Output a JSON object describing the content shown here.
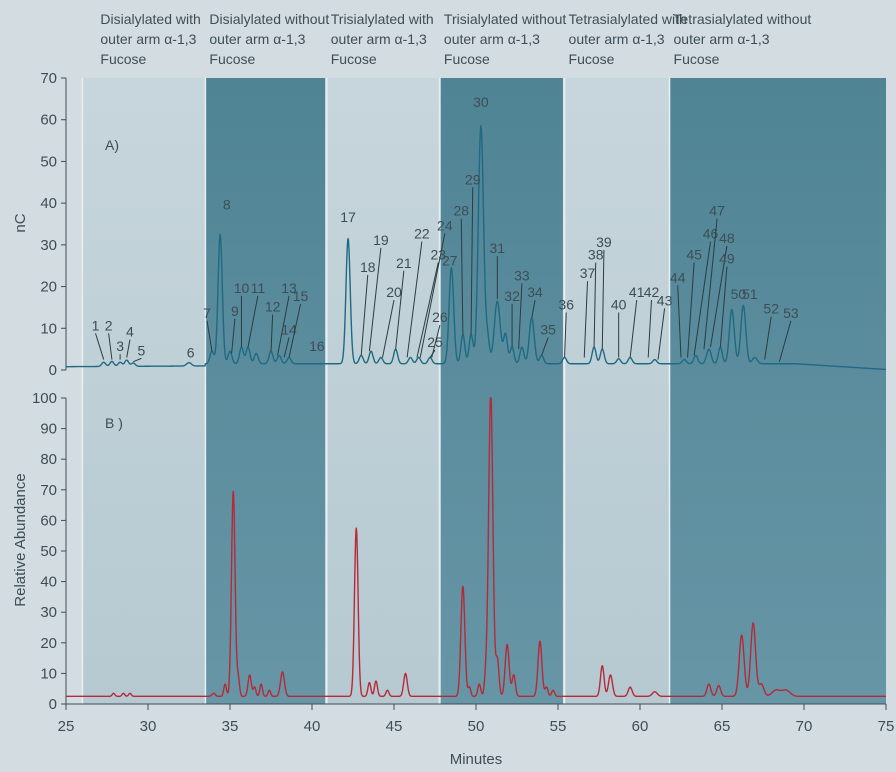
{
  "chart_data": {
    "type": "line",
    "xlabel": "Minutes",
    "xlim": [
      25,
      75
    ],
    "xticks": [
      25,
      30,
      35,
      40,
      45,
      50,
      55,
      60,
      65,
      70,
      75
    ],
    "bands": [
      {
        "x": [
          26,
          33.5
        ],
        "style": "light",
        "lines": [
          "Disialylated with",
          "outer arm α-1,3",
          "Fucose"
        ]
      },
      {
        "x": [
          33.5,
          40.8
        ],
        "style": "dark",
        "lines": [
          "Disialylated without",
          "outer arm α-1,3",
          "Fucose"
        ]
      },
      {
        "x": [
          40.9,
          47.7
        ],
        "style": "light",
        "lines": [
          "Trisialylated with",
          "outer arm α-1,3",
          "Fucose"
        ]
      },
      {
        "x": [
          47.8,
          55.3
        ],
        "style": "dark",
        "lines": [
          "Trisialylated without",
          "outer arm α-1,3",
          "Fucose"
        ]
      },
      {
        "x": [
          55.4,
          61.8
        ],
        "style": "light",
        "lines": [
          "Tetrasialylated with",
          "outer arm α-1,3",
          "Fucose"
        ]
      },
      {
        "x": [
          61.8,
          75
        ],
        "style": "dark",
        "lines": [
          "Tetrasialylated without",
          "outer arm α-1,3",
          "Fucose"
        ]
      }
    ],
    "panels": [
      {
        "tag": "A)",
        "ylabel": "nC",
        "ylim": [
          0,
          70
        ],
        "yticks": [
          0,
          10,
          20,
          30,
          40,
          50,
          60,
          70
        ],
        "color": "#1f6a82",
        "baseline": 1.5,
        "peaks": [
          [
            27.3,
            1.0,
            0.12
          ],
          [
            27.8,
            1.2,
            0.12
          ],
          [
            28.3,
            1.0,
            0.12
          ],
          [
            28.7,
            1.5,
            0.12
          ],
          [
            29.1,
            0.8,
            0.12
          ],
          [
            32.5,
            0.8,
            0.15
          ],
          [
            33.9,
            3.0,
            0.12
          ],
          [
            34.4,
            31.0,
            0.13
          ],
          [
            35.0,
            3.0,
            0.12
          ],
          [
            35.7,
            4.0,
            0.12
          ],
          [
            36.1,
            4.0,
            0.12
          ],
          [
            36.6,
            2.5,
            0.12
          ],
          [
            37.5,
            3.0,
            0.12
          ],
          [
            38.0,
            2.0,
            0.12
          ],
          [
            38.6,
            1.5,
            0.12
          ],
          [
            42.2,
            30.0,
            0.13
          ],
          [
            43.0,
            2.0,
            0.12
          ],
          [
            43.6,
            3.0,
            0.12
          ],
          [
            44.2,
            1.5,
            0.12
          ],
          [
            45.1,
            3.5,
            0.12
          ],
          [
            46.0,
            1.5,
            0.12
          ],
          [
            46.5,
            1.5,
            0.12
          ],
          [
            47.2,
            1.5,
            0.12
          ],
          [
            48.5,
            23.0,
            0.14
          ],
          [
            49.2,
            7.0,
            0.12
          ],
          [
            49.7,
            7.0,
            0.12
          ],
          [
            50.3,
            57.0,
            0.16
          ],
          [
            50.7,
            6.0,
            0.12
          ],
          [
            51.3,
            15.0,
            0.18
          ],
          [
            51.8,
            7.0,
            0.12
          ],
          [
            52.2,
            4.0,
            0.12
          ],
          [
            52.8,
            4.0,
            0.12
          ],
          [
            53.4,
            11.0,
            0.15
          ],
          [
            54.0,
            2.0,
            0.12
          ],
          [
            55.4,
            1.5,
            0.12
          ],
          [
            57.2,
            4.0,
            0.12
          ],
          [
            57.7,
            3.5,
            0.12
          ],
          [
            58.7,
            1.2,
            0.12
          ],
          [
            59.4,
            1.5,
            0.12
          ],
          [
            60.9,
            1.0,
            0.12
          ],
          [
            62.7,
            1.0,
            0.12
          ],
          [
            63.4,
            2.0,
            0.12
          ],
          [
            64.2,
            3.5,
            0.14
          ],
          [
            64.9,
            4.0,
            0.12
          ],
          [
            65.6,
            13.0,
            0.15
          ],
          [
            66.3,
            14.0,
            0.15
          ],
          [
            67.0,
            1.5,
            0.15
          ]
        ],
        "labels": [
          {
            "t": "1",
            "x": 26.8,
            "y": 9.5,
            "px": 27.3,
            "py": 2.5
          },
          {
            "t": "2",
            "x": 27.6,
            "y": 9.5,
            "px": 27.8,
            "py": 2.5
          },
          {
            "t": "3",
            "x": 28.3,
            "y": 4.5,
            "px": 28.3,
            "py": 2.5
          },
          {
            "t": "4",
            "x": 28.9,
            "y": 8.0,
            "px": 28.7,
            "py": 3.0
          },
          {
            "t": "5",
            "x": 29.6,
            "y": 3.5,
            "px": 29.1,
            "py": 2.0
          },
          {
            "t": "6",
            "x": 32.6,
            "y": 3.0
          },
          {
            "t": "7",
            "x": 33.6,
            "y": 12.5,
            "px": 33.9,
            "py": 4.5
          },
          {
            "t": "8",
            "x": 34.8,
            "y": 38.5
          },
          {
            "t": "9",
            "x": 35.3,
            "y": 13.0,
            "px": 35.1,
            "py": 4.0
          },
          {
            "t": "10",
            "x": 35.7,
            "y": 18.5,
            "px": 35.7,
            "py": 5.5
          },
          {
            "t": "11",
            "x": 36.7,
            "y": 18.5,
            "px": 36.1,
            "py": 5.5
          },
          {
            "t": "12",
            "x": 37.6,
            "y": 14.0,
            "px": 37.5,
            "py": 4.5
          },
          {
            "t": "13",
            "x": 38.6,
            "y": 18.5,
            "px": 37.9,
            "py": 3.5
          },
          {
            "t": "14",
            "x": 38.6,
            "y": 8.5,
            "px": 38.3,
            "py": 3.0
          },
          {
            "t": "15",
            "x": 39.3,
            "y": 16.5,
            "px": 38.6,
            "py": 3.0
          },
          {
            "t": "16",
            "x": 40.3,
            "y": 4.5
          },
          {
            "t": "17",
            "x": 42.2,
            "y": 35.5
          },
          {
            "t": "18",
            "x": 43.4,
            "y": 23.5,
            "px": 43.0,
            "py": 3.5
          },
          {
            "t": "19",
            "x": 44.2,
            "y": 30.0,
            "px": 43.5,
            "py": 4.5
          },
          {
            "t": "20",
            "x": 45.0,
            "y": 17.5,
            "px": 44.3,
            "py": 3.0
          },
          {
            "t": "21",
            "x": 45.6,
            "y": 24.5,
            "px": 45.1,
            "py": 5.0
          },
          {
            "t": "22",
            "x": 46.7,
            "y": 31.5,
            "px": 45.8,
            "py": 3.0
          },
          {
            "t": "23",
            "x": 47.7,
            "y": 26.5,
            "px": 46.4,
            "py": 3.0
          },
          {
            "t": "24",
            "x": 48.1,
            "y": 33.5,
            "px": 46.6,
            "py": 3.0
          },
          {
            "t": "25",
            "x": 47.5,
            "y": 5.5,
            "px": 47.2,
            "py": 3.0
          },
          {
            "t": "26",
            "x": 47.8,
            "y": 11.5,
            "px": 47.3,
            "py": 3.0
          },
          {
            "t": "27",
            "x": 48.4,
            "y": 25.0
          },
          {
            "t": "28",
            "x": 49.1,
            "y": 37.0,
            "px": 49.2,
            "py": 8.5
          },
          {
            "t": "29",
            "x": 49.8,
            "y": 44.5,
            "px": 49.7,
            "py": 8.5
          },
          {
            "t": "30",
            "x": 50.3,
            "y": 63.0
          },
          {
            "t": "31",
            "x": 51.3,
            "y": 28.0,
            "px": 51.3,
            "py": 17.0
          },
          {
            "t": "32",
            "x": 52.2,
            "y": 16.5,
            "px": 52.2,
            "py": 5.5
          },
          {
            "t": "33",
            "x": 52.8,
            "y": 21.5,
            "px": 52.6,
            "py": 5.0
          },
          {
            "t": "34",
            "x": 53.6,
            "y": 17.5,
            "px": 53.4,
            "py": 12.5
          },
          {
            "t": "35",
            "x": 54.4,
            "y": 8.5,
            "px": 54.0,
            "py": 3.5
          },
          {
            "t": "36",
            "x": 55.5,
            "y": 14.5,
            "px": 55.4,
            "py": 3.0
          },
          {
            "t": "37",
            "x": 56.8,
            "y": 22.0,
            "px": 56.6,
            "py": 3.0
          },
          {
            "t": "38",
            "x": 57.3,
            "y": 26.5,
            "px": 57.2,
            "py": 5.5
          },
          {
            "t": "39",
            "x": 57.8,
            "y": 29.5,
            "px": 57.7,
            "py": 5.0
          },
          {
            "t": "40",
            "x": 58.7,
            "y": 14.5,
            "px": 58.7,
            "py": 3.0
          },
          {
            "t": "41",
            "x": 59.8,
            "y": 17.5,
            "px": 59.4,
            "py": 3.0
          },
          {
            "t": "42",
            "x": 60.7,
            "y": 17.5,
            "px": 60.5,
            "py": 3.0
          },
          {
            "t": "43",
            "x": 61.5,
            "y": 15.5,
            "px": 61.1,
            "py": 2.5
          },
          {
            "t": "44",
            "x": 62.3,
            "y": 21.0,
            "px": 62.5,
            "py": 3.0
          },
          {
            "t": "45",
            "x": 63.3,
            "y": 26.5,
            "px": 62.9,
            "py": 3.0
          },
          {
            "t": "46",
            "x": 64.3,
            "y": 31.5,
            "px": 63.3,
            "py": 3.5
          },
          {
            "t": "47",
            "x": 64.7,
            "y": 37.0,
            "px": 63.9,
            "py": 5.0
          },
          {
            "t": "48",
            "x": 65.3,
            "y": 30.5,
            "px": 64.3,
            "py": 5.5
          },
          {
            "t": "49",
            "x": 65.3,
            "y": 25.5,
            "px": 64.9,
            "py": 5.5
          },
          {
            "t": "50",
            "x": 66.0,
            "y": 17.0
          },
          {
            "t": "51",
            "x": 66.7,
            "y": 17.0
          },
          {
            "t": "52",
            "x": 68.0,
            "y": 13.5,
            "px": 67.6,
            "py": 2.5
          },
          {
            "t": "53",
            "x": 69.2,
            "y": 12.5,
            "px": 68.5,
            "py": 2.0
          }
        ]
      },
      {
        "tag": "B )",
        "ylabel": "Relative Abundance",
        "ylim": [
          0,
          100
        ],
        "yticks": [
          0,
          10,
          20,
          30,
          40,
          50,
          60,
          70,
          80,
          90,
          100
        ],
        "color": "#b52a38",
        "baseline": 2.5,
        "peaks": [
          [
            27.9,
            1.0,
            0.08
          ],
          [
            28.5,
            1.0,
            0.08
          ],
          [
            28.9,
            1.0,
            0.08
          ],
          [
            34.0,
            1.0,
            0.1
          ],
          [
            34.7,
            4.0,
            0.08
          ],
          [
            35.2,
            67.0,
            0.11
          ],
          [
            35.5,
            6.0,
            0.08
          ],
          [
            36.2,
            7.0,
            0.1
          ],
          [
            36.5,
            3.0,
            0.08
          ],
          [
            36.9,
            4.0,
            0.08
          ],
          [
            37.4,
            2.0,
            0.08
          ],
          [
            38.2,
            8.0,
            0.12
          ],
          [
            42.7,
            55.0,
            0.11
          ],
          [
            43.5,
            4.5,
            0.09
          ],
          [
            43.9,
            5.0,
            0.09
          ],
          [
            44.6,
            2.0,
            0.09
          ],
          [
            45.7,
            7.5,
            0.11
          ],
          [
            49.2,
            36.0,
            0.12
          ],
          [
            49.6,
            3.0,
            0.08
          ],
          [
            50.2,
            4.0,
            0.09
          ],
          [
            50.6,
            6.0,
            0.09
          ],
          [
            50.9,
            99.0,
            0.13
          ],
          [
            51.3,
            12.0,
            0.1
          ],
          [
            51.9,
            17.0,
            0.12
          ],
          [
            52.3,
            7.0,
            0.1
          ],
          [
            53.9,
            18.0,
            0.12
          ],
          [
            54.3,
            3.0,
            0.09
          ],
          [
            54.7,
            2.0,
            0.09
          ],
          [
            57.7,
            10.0,
            0.11
          ],
          [
            58.2,
            7.0,
            0.12
          ],
          [
            59.4,
            3.0,
            0.12
          ],
          [
            60.9,
            1.5,
            0.15
          ],
          [
            64.2,
            4.0,
            0.12
          ],
          [
            64.8,
            3.5,
            0.12
          ],
          [
            66.2,
            20.0,
            0.15
          ],
          [
            66.9,
            24.0,
            0.15
          ],
          [
            67.4,
            4.0,
            0.15
          ],
          [
            68.3,
            2.0,
            0.25
          ],
          [
            68.9,
            2.0,
            0.25
          ]
        ],
        "labels": []
      }
    ]
  }
}
